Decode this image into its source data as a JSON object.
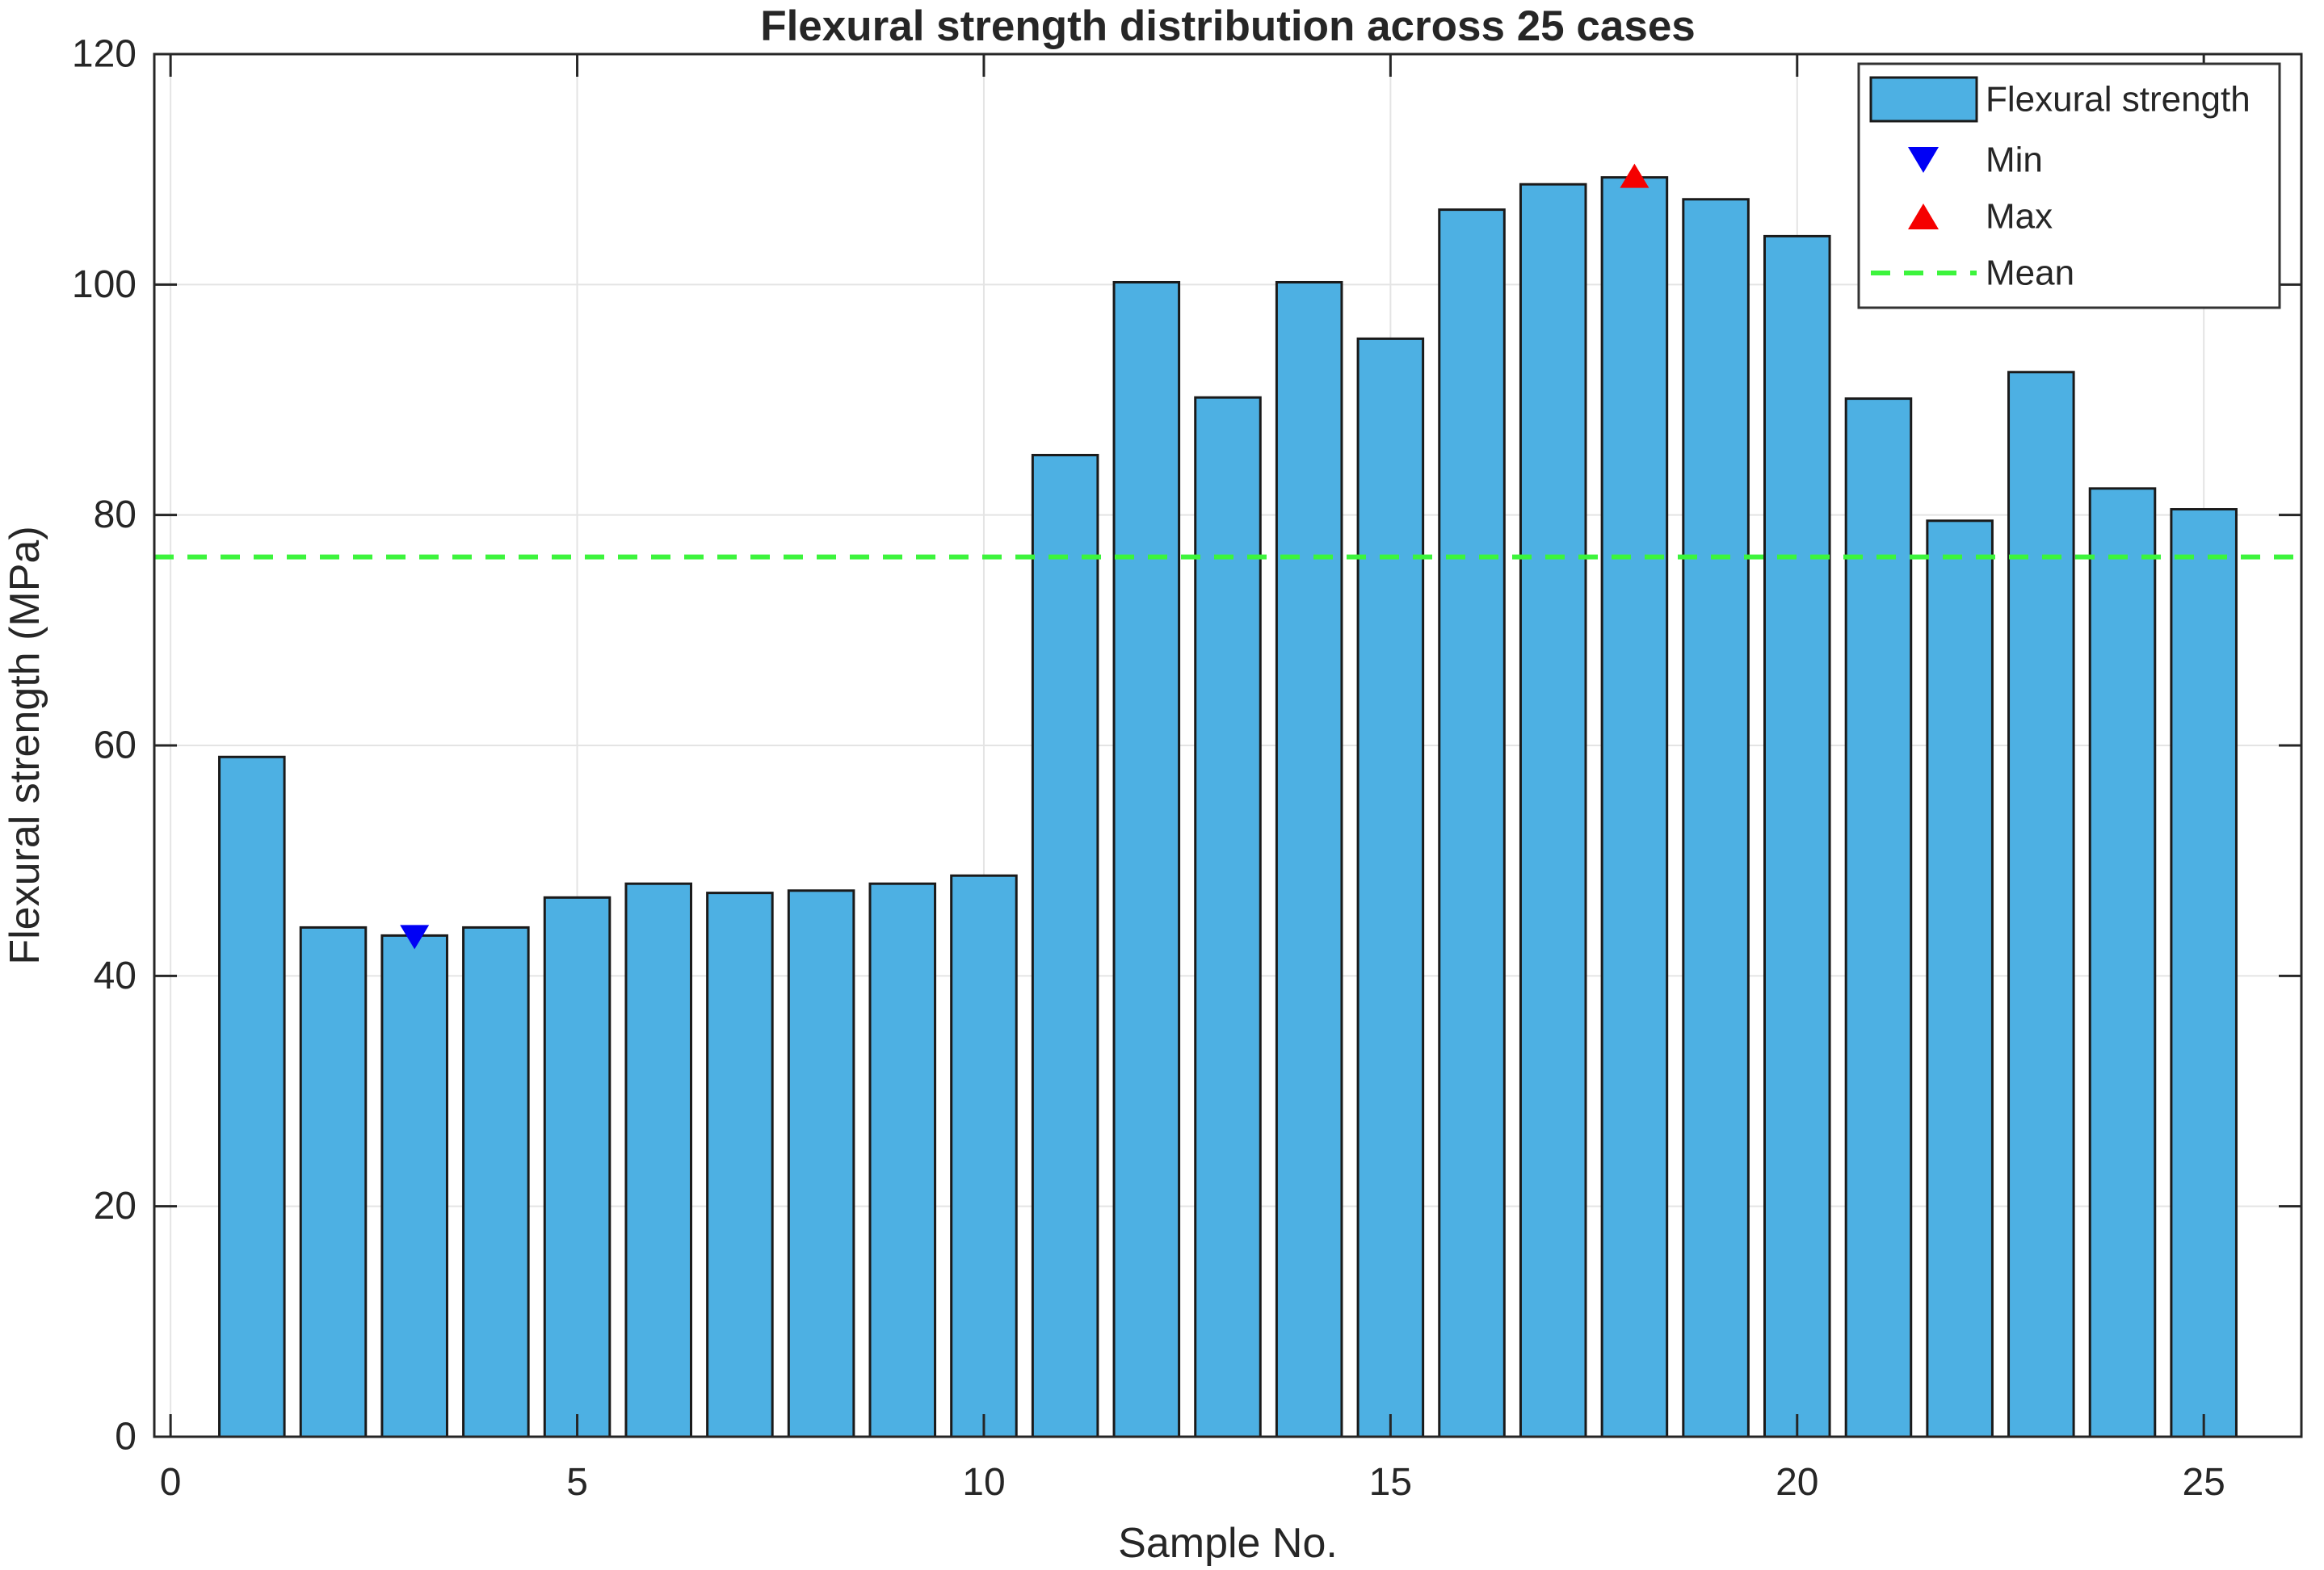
{
  "chart_data": {
    "type": "bar",
    "title": "Flexural strength distribution across 25 cases",
    "xlabel": "Sample No.",
    "ylabel": "Flexural strength (MPa)",
    "categories": [
      1,
      2,
      3,
      4,
      5,
      6,
      7,
      8,
      9,
      10,
      11,
      12,
      13,
      14,
      15,
      16,
      17,
      18,
      19,
      20,
      21,
      22,
      23,
      24,
      25
    ],
    "values": [
      59.0,
      44.2,
      43.5,
      44.2,
      46.8,
      48.0,
      47.2,
      47.4,
      48.0,
      48.7,
      85.2,
      100.2,
      90.2,
      100.2,
      95.3,
      106.5,
      108.7,
      109.3,
      107.4,
      104.2,
      90.1,
      79.5,
      92.4,
      82.3,
      80.5
    ],
    "bar_width": 0.8,
    "xlim": [
      -0.2,
      26.2
    ],
    "ylim": [
      0,
      120
    ],
    "xticks": [
      0,
      5,
      10,
      15,
      20,
      25
    ],
    "yticks": [
      0,
      20,
      40,
      60,
      80,
      100,
      120
    ],
    "grid": true,
    "legend_position": "top-right",
    "mean": 76.36,
    "min": {
      "sample": 3,
      "value": 43.5
    },
    "max": {
      "sample": 18,
      "value": 109.3
    },
    "legend": {
      "items": [
        {
          "label": "Flexural strength",
          "swatch": "bar-patch"
        },
        {
          "label": "Min",
          "swatch": "triangle-down"
        },
        {
          "label": "Max",
          "swatch": "triangle-up"
        },
        {
          "label": "Mean",
          "swatch": "dashed-line"
        }
      ]
    },
    "colors": {
      "bar_fill": "#4DB0E3",
      "bar_edge": "#1A1A1A",
      "mean_line": "#3CF43C",
      "min_marker": "#0000F5",
      "max_marker": "#F50000",
      "grid": "#E4E4E4",
      "axis": "#262626",
      "background": "#FFFFFF"
    }
  }
}
